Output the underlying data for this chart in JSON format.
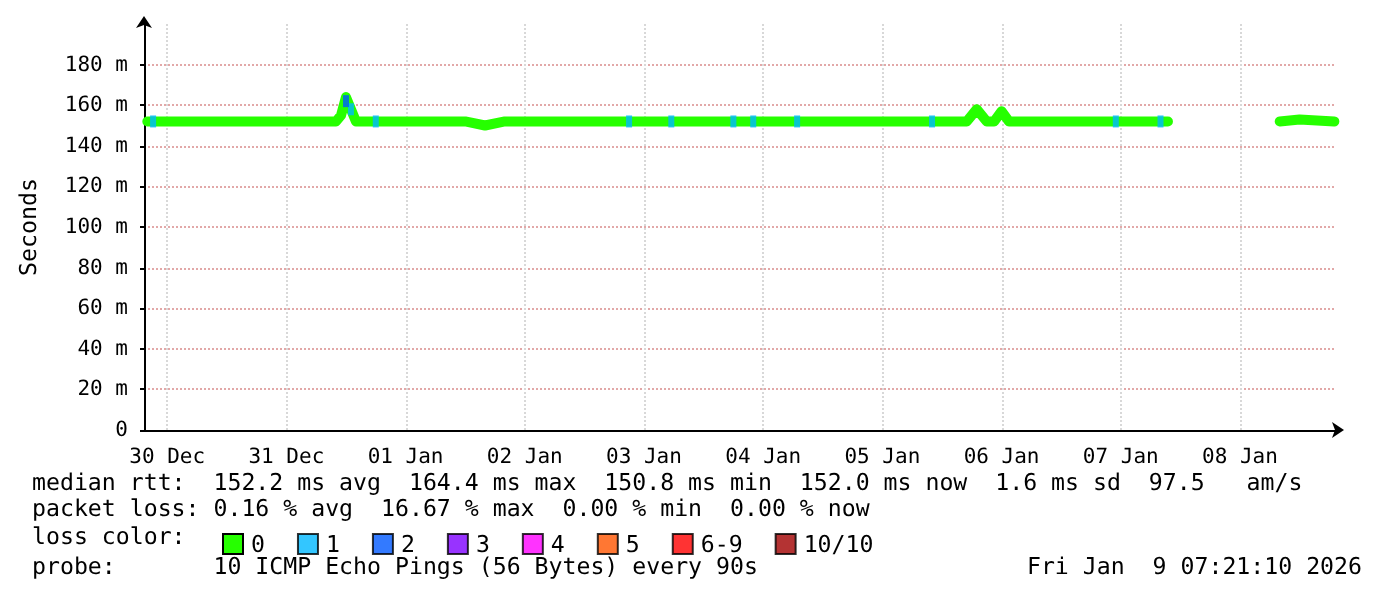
{
  "chart_data": {
    "type": "line",
    "ylabel": "Seconds",
    "legend_title": "loss color:",
    "legend": "bottom",
    "grid": true,
    "xlim": [
      "2025-12-30T07:20",
      "2026-01-09T07:20"
    ],
    "xticks": [
      {
        "value": "2025-12-30T12:00",
        "label": "30 Dec"
      },
      {
        "value": "2025-12-31T12:00",
        "label": "31 Dec"
      },
      {
        "value": "2026-01-01T12:00",
        "label": "01 Jan"
      },
      {
        "value": "2026-01-02T12:00",
        "label": "02 Jan"
      },
      {
        "value": "2026-01-03T12:00",
        "label": "03 Jan"
      },
      {
        "value": "2026-01-04T12:00",
        "label": "04 Jan"
      },
      {
        "value": "2026-01-05T12:00",
        "label": "05 Jan"
      },
      {
        "value": "2026-01-06T12:00",
        "label": "06 Jan"
      },
      {
        "value": "2026-01-07T12:00",
        "label": "07 Jan"
      },
      {
        "value": "2026-01-08T12:00",
        "label": "08 Jan"
      }
    ],
    "ylim": [
      0,
      200
    ],
    "yticks": [
      0,
      {
        "value": 20,
        "label": "20 m"
      },
      {
        "value": 40,
        "label": "40 m"
      },
      {
        "value": 60,
        "label": "60 m"
      },
      {
        "value": 80,
        "label": "80 m"
      },
      {
        "value": 100,
        "label": "100 m"
      },
      {
        "value": 120,
        "label": "120 m"
      },
      {
        "value": 140,
        "label": "140 m"
      },
      {
        "value": 160,
        "label": "160 m"
      },
      {
        "value": 180,
        "label": "180 m"
      }
    ],
    "series": [
      {
        "name": "0",
        "color": "#26ff00",
        "marker": "none",
        "x": [
          "2025-12-30T08:00",
          "2025-12-30T18:00",
          "2025-12-31T06:00",
          "2025-12-31T18:00",
          "2025-12-31T22:00",
          "2025-12-31T23:00",
          "2026-01-01T00:00",
          "2026-01-01T01:00",
          "2026-01-01T02:00",
          "2026-01-01T12:00",
          "2026-01-02T00:00",
          "2026-01-02T04:00",
          "2026-01-02T08:00",
          "2026-01-02T12:00",
          "2026-01-03T00:00",
          "2026-01-03T12:00",
          "2026-01-04T00:00",
          "2026-01-04T12:00",
          "2026-01-05T00:00",
          "2026-01-05T12:00",
          "2026-01-06T00:00",
          "2026-01-06T05:00",
          "2026-01-06T07:00",
          "2026-01-06T09:00",
          "2026-01-06T10:30",
          "2026-01-06T12:00",
          "2026-01-06T13:30",
          "2026-01-07T00:00",
          "2026-01-07T12:00",
          "2026-01-07T21:30",
          "2026-01-08T06:00",
          "2026-01-08T20:00",
          "2026-01-09T00:00",
          "2026-01-09T07:00"
        ],
        "values": [
          152,
          152,
          152,
          152,
          152,
          155,
          164,
          158,
          152,
          152,
          152,
          150,
          152,
          152,
          152,
          152,
          152,
          152,
          152,
          152,
          152,
          152,
          158,
          152,
          152,
          157,
          152,
          152,
          152,
          152,
          null,
          152,
          153,
          152
        ]
      },
      {
        "name": "1",
        "color": "#00b8ff",
        "type": "scatter",
        "marker": "square",
        "x": [
          "2025-12-30T09:10",
          "2026-01-01T01:00",
          "2026-01-01T06:00",
          "2026-01-03T09:00",
          "2026-01-03T17:30",
          "2026-01-04T06:00",
          "2026-01-04T10:00",
          "2026-01-04T18:50",
          "2026-01-05T22:00",
          "2026-01-07T11:00",
          "2026-01-07T20:00"
        ],
        "values": [
          152,
          158,
          152,
          152,
          152,
          152,
          152,
          152,
          152,
          152,
          152
        ]
      },
      {
        "name": "2",
        "color": "#0059ff",
        "type": "scatter",
        "marker": "square",
        "x": [
          "2026-01-01T00:00"
        ],
        "values": [
          162
        ]
      },
      {
        "name": "3",
        "color": "#7e00ff",
        "type": "scatter",
        "marker": "square"
      },
      {
        "name": "4",
        "color": "#ff00ff",
        "type": "scatter",
        "marker": "square"
      },
      {
        "name": "5",
        "color": "#ff5500",
        "type": "scatter",
        "marker": "square"
      },
      {
        "name": "6-9",
        "color": "#ff0000",
        "type": "scatter",
        "marker": "square"
      },
      {
        "name": "10/10",
        "color": "#a10000",
        "type": "scatter",
        "marker": "square"
      }
    ],
    "annotations": [
      "median rtt:  152.2 ms avg  164.4 ms max  150.8 ms min  152.0 ms now  1.6 ms sd  97.5   am/s",
      "packet loss: 0.16 % avg  16.67 % max  0.00 % min  0.00 % now",
      "probe:       10 ICMP Echo Pings (56 Bytes) every 90s",
      "Fri Jan  9 07:21:10 2026"
    ]
  }
}
